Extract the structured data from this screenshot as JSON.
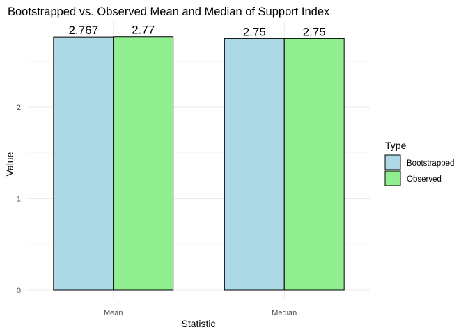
{
  "chart_data": {
    "type": "bar",
    "title": "Bootstrapped vs. Observed Mean and Median of Support Index",
    "xlabel": "Statistic",
    "ylabel": "Value",
    "categories": [
      "Mean",
      "Median"
    ],
    "yticks": [
      0,
      1,
      2
    ],
    "ylim": [
      0,
      2.9
    ],
    "grid": true,
    "legend": {
      "title": "Type",
      "position": "right"
    },
    "series": [
      {
        "name": "Bootstrapped",
        "color": "#add8e6",
        "values": [
          2.767,
          2.75
        ],
        "labels": [
          "2.767",
          "2.75"
        ]
      },
      {
        "name": "Observed",
        "color": "#90ee90",
        "values": [
          2.77,
          2.75
        ],
        "labels": [
          "2.77",
          "2.75"
        ]
      }
    ]
  }
}
